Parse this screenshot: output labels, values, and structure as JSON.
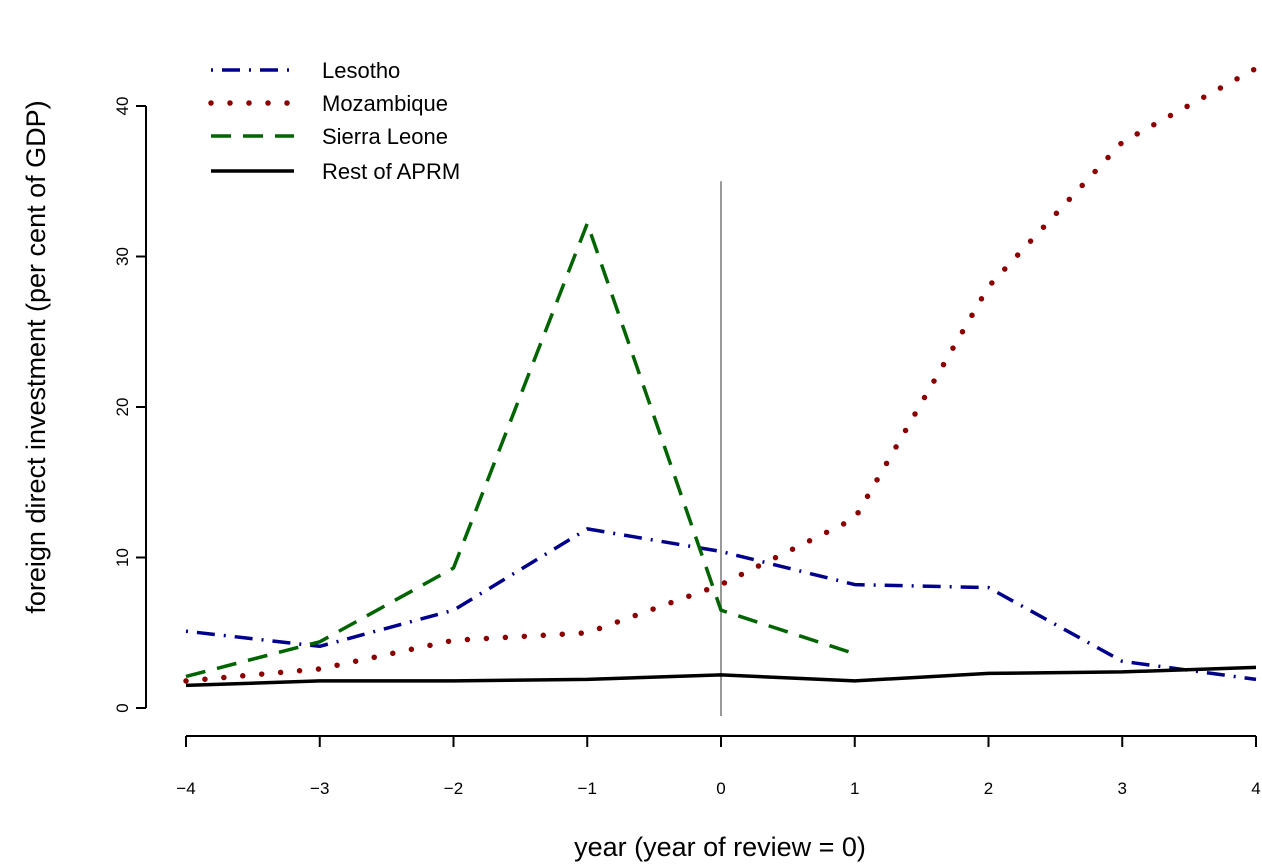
{
  "chart_data": {
    "type": "line",
    "title": "",
    "xlabel": "year (year of review = 0)",
    "ylabel": "foreign direct investment (per cent of GDP)",
    "xlim": [
      -4,
      4
    ],
    "ylim": [
      0,
      40
    ],
    "x_ticks": [
      -4,
      -3,
      -2,
      -1,
      0,
      1,
      2,
      3,
      4
    ],
    "x_tick_labels": [
      "−4",
      "−3",
      "−2",
      "−1",
      "0",
      "1",
      "2",
      "3",
      "4"
    ],
    "y_ticks": [
      0,
      10,
      20,
      30,
      40
    ],
    "y_tick_labels": [
      "0",
      "10",
      "20",
      "30",
      "40"
    ],
    "grid": false,
    "legend_position": "top-left",
    "reference_line": {
      "x": 0,
      "y_top": 35,
      "color": "#999999"
    },
    "series": [
      {
        "name": "Lesotho",
        "color": "#00008b",
        "style": "dotdash",
        "x": [
          -4,
          -3,
          -2,
          -1,
          0,
          1,
          2,
          3,
          4
        ],
        "y": [
          5.1,
          4.1,
          6.5,
          11.9,
          10.4,
          8.2,
          8.0,
          3.1,
          1.9
        ]
      },
      {
        "name": "Mozambique",
        "color": "#8b0000",
        "style": "dotted",
        "x": [
          -4,
          -3,
          -2,
          -1,
          0,
          1,
          2,
          3,
          4
        ],
        "y": [
          1.8,
          2.6,
          4.5,
          5.0,
          8.2,
          12.6,
          28.0,
          37.6,
          42.5
        ]
      },
      {
        "name": "Sierra Leone",
        "color": "#006400",
        "style": "dashed",
        "x": [
          -4,
          -3,
          -2,
          -1,
          0,
          1
        ],
        "y": [
          2.1,
          4.4,
          9.3,
          32.2,
          6.5,
          3.6
        ]
      },
      {
        "name": "Rest of APRM",
        "color": "#000000",
        "style": "solid",
        "x": [
          -4,
          -3,
          -2,
          -1,
          0,
          1,
          2,
          3,
          4
        ],
        "y": [
          1.5,
          1.8,
          1.8,
          1.9,
          2.2,
          1.8,
          2.3,
          2.4,
          2.7
        ]
      }
    ]
  }
}
